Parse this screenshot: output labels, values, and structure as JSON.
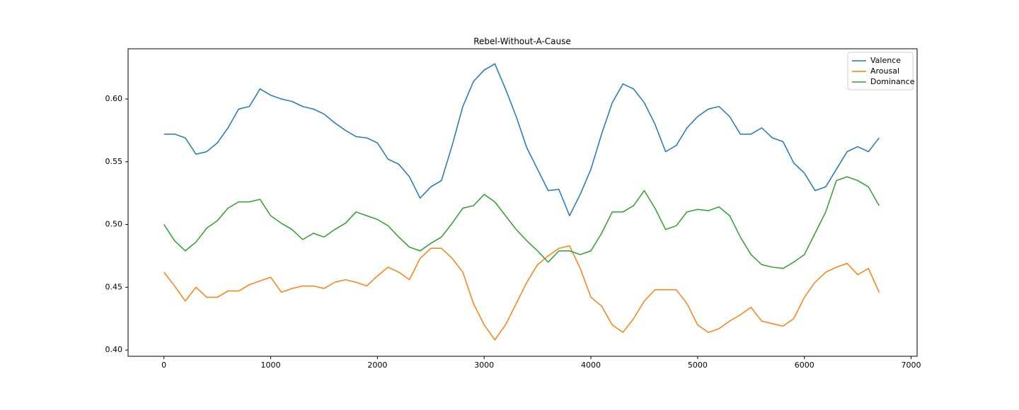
{
  "chart_data": {
    "type": "line",
    "title": "Rebel-Without-A-Cause",
    "x": [
      0,
      100,
      200,
      300,
      400,
      500,
      600,
      700,
      800,
      900,
      1000,
      1100,
      1200,
      1300,
      1400,
      1500,
      1600,
      1700,
      1800,
      1900,
      2000,
      2100,
      2200,
      2300,
      2400,
      2500,
      2600,
      2700,
      2800,
      2900,
      3000,
      3100,
      3200,
      3300,
      3400,
      3500,
      3600,
      3700,
      3800,
      3900,
      4000,
      4100,
      4200,
      4300,
      4400,
      4500,
      4600,
      4700,
      4800,
      4900,
      5000,
      5100,
      5200,
      5300,
      5400,
      5500,
      5600,
      5700,
      5800,
      5900,
      6000,
      6100,
      6200,
      6300,
      6400,
      6500,
      6600,
      6700
    ],
    "series": [
      {
        "name": "Valence",
        "color": "#1f77b4",
        "values": [
          0.572,
          0.572,
          0.569,
          0.556,
          0.558,
          0.565,
          0.577,
          0.592,
          0.594,
          0.608,
          0.603,
          0.6,
          0.598,
          0.594,
          0.592,
          0.588,
          0.581,
          0.575,
          0.57,
          0.569,
          0.565,
          0.552,
          0.548,
          0.538,
          0.521,
          0.53,
          0.535,
          0.563,
          0.594,
          0.614,
          0.623,
          0.628,
          0.608,
          0.586,
          0.561,
          0.544,
          0.527,
          0.528,
          0.507,
          0.524,
          0.544,
          0.572,
          0.597,
          0.612,
          0.608,
          0.597,
          0.58,
          0.558,
          0.563,
          0.577,
          0.586,
          0.592,
          0.594,
          0.586,
          0.572,
          0.572,
          0.577,
          0.569,
          0.566,
          0.549,
          0.541,
          0.527,
          0.53,
          0.544,
          0.558,
          0.562,
          0.558,
          0.569
        ]
      },
      {
        "name": "Arousal",
        "color": "#ff7f0e",
        "values": [
          0.462,
          0.451,
          0.439,
          0.45,
          0.442,
          0.442,
          0.447,
          0.447,
          0.452,
          0.455,
          0.458,
          0.446,
          0.449,
          0.451,
          0.451,
          0.449,
          0.454,
          0.456,
          0.454,
          0.451,
          0.459,
          0.466,
          0.462,
          0.456,
          0.473,
          0.481,
          0.481,
          0.473,
          0.462,
          0.437,
          0.42,
          0.408,
          0.42,
          0.437,
          0.454,
          0.468,
          0.475,
          0.481,
          0.483,
          0.465,
          0.442,
          0.435,
          0.42,
          0.414,
          0.425,
          0.439,
          0.448,
          0.448,
          0.448,
          0.437,
          0.42,
          0.414,
          0.417,
          0.423,
          0.428,
          0.434,
          0.423,
          0.421,
          0.419,
          0.425,
          0.442,
          0.454,
          0.462,
          0.466,
          0.469,
          0.46,
          0.465,
          0.446
        ]
      },
      {
        "name": "Dominance",
        "color": "#2ca02c",
        "values": [
          0.5,
          0.487,
          0.479,
          0.486,
          0.497,
          0.503,
          0.513,
          0.518,
          0.518,
          0.52,
          0.507,
          0.501,
          0.496,
          0.488,
          0.493,
          0.49,
          0.496,
          0.501,
          0.51,
          0.507,
          0.504,
          0.499,
          0.49,
          0.482,
          0.479,
          0.485,
          0.49,
          0.501,
          0.513,
          0.515,
          0.524,
          0.518,
          0.507,
          0.496,
          0.487,
          0.479,
          0.47,
          0.479,
          0.479,
          0.476,
          0.479,
          0.493,
          0.51,
          0.51,
          0.515,
          0.527,
          0.513,
          0.496,
          0.499,
          0.51,
          0.512,
          0.511,
          0.514,
          0.507,
          0.49,
          0.476,
          0.468,
          0.466,
          0.465,
          0.47,
          0.476,
          0.493,
          0.51,
          0.535,
          0.538,
          0.535,
          0.53,
          0.515
        ]
      }
    ],
    "xlim": [
      -336,
      7056
    ],
    "xticks": [
      0,
      1000,
      2000,
      3000,
      4000,
      5000,
      6000,
      7000
    ],
    "ylim": [
      0.395,
      0.64
    ],
    "yticks": [
      {
        "value": 0.4,
        "label": "0.40"
      },
      0.45,
      {
        "value": 0.5,
        "label": "0.50"
      },
      0.55,
      {
        "value": 0.6,
        "label": "0.60"
      }
    ],
    "grid": false,
    "legend": "upper right"
  }
}
